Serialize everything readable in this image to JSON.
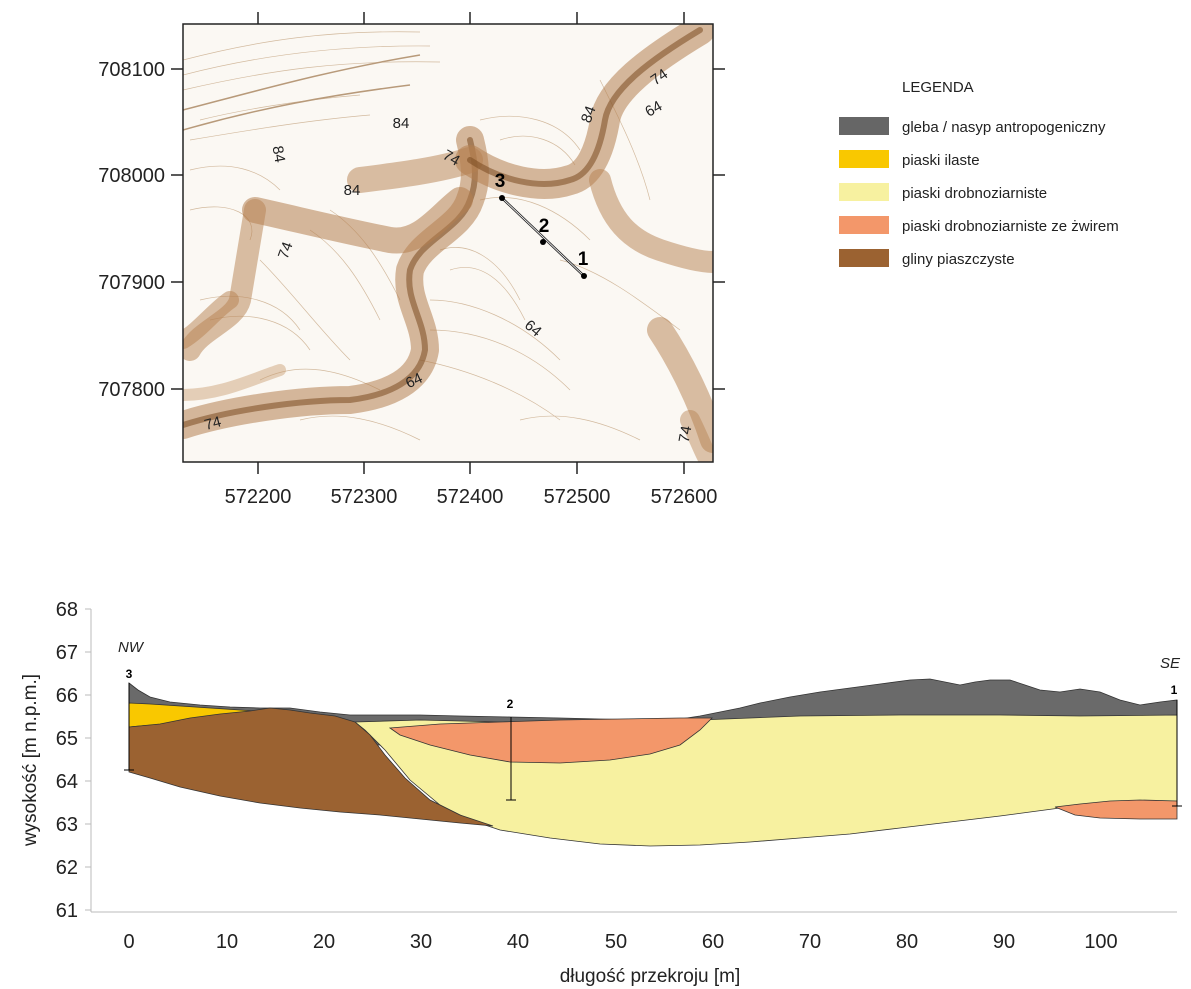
{
  "map": {
    "x_ticks": [
      "572200",
      "572300",
      "572400",
      "572500",
      "572600"
    ],
    "y_ticks": [
      "708100",
      "708000",
      "707900",
      "707800"
    ],
    "contour_labels": [
      "84",
      "84",
      "84",
      "74",
      "74",
      "74",
      "74",
      "74",
      "84",
      "64",
      "64",
      "64",
      "74"
    ],
    "profile_points": [
      "3",
      "2",
      "1"
    ]
  },
  "legend": {
    "title": "LEGENDA",
    "items": [
      {
        "label": "gleba / nasyp antropogeniczny",
        "color": "#666666"
      },
      {
        "label": "piaski ilaste",
        "color": "#f9c800"
      },
      {
        "label": "piaski drobnoziarniste",
        "color": "#f7f1a0"
      },
      {
        "label": "piaski drobnoziarniste ze żwirem",
        "color": "#f3976a"
      },
      {
        "label": "gliny piaszczyste",
        "color": "#9b6231"
      }
    ]
  },
  "profile": {
    "xlabel": "długość przekroju [m]",
    "ylabel": "wysokość [m n.p.m.]",
    "x_ticks": [
      "0",
      "10",
      "20",
      "30",
      "40",
      "50",
      "60",
      "70",
      "80",
      "90",
      "100"
    ],
    "y_ticks": [
      "68",
      "67",
      "66",
      "65",
      "64",
      "63",
      "62",
      "61"
    ],
    "left_direction": "NW",
    "right_direction": "SE",
    "boreholes": [
      "3",
      "2",
      "1"
    ]
  }
}
